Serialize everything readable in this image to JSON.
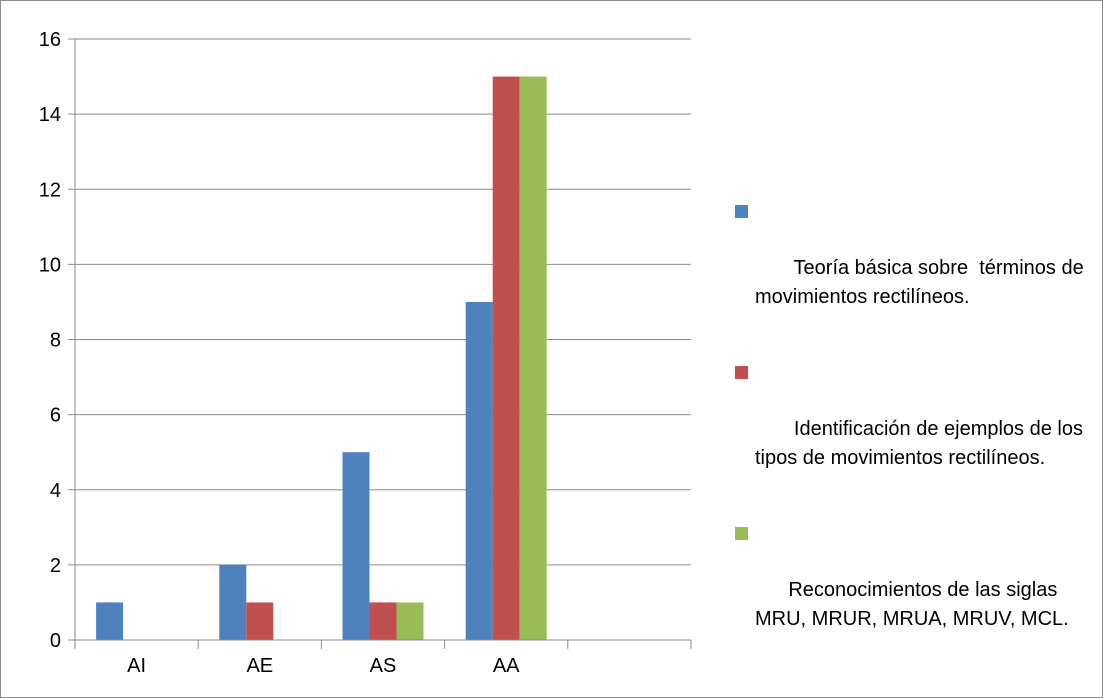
{
  "chart_data": {
    "type": "bar",
    "categories": [
      "AI",
      "AE",
      "AS",
      "AA",
      ""
    ],
    "series": [
      {
        "name": " Teoría básica sobre  términos de movimientos rectilíneos.",
        "values": [
          1,
          2,
          5,
          9,
          0
        ]
      },
      {
        "name": " Identificación de ejemplos de los tipos de movimientos rectilíneos.",
        "values": [
          0,
          1,
          1,
          15,
          0
        ]
      },
      {
        "name": "Reconocimientos de las siglas MRU, MRUR, MRUA, MRUV, MCL.",
        "values": [
          0,
          0,
          1,
          15,
          0
        ]
      }
    ],
    "y_ticks": [
      "0",
      "2",
      "4",
      "6",
      "8",
      "10",
      "12",
      "14",
      "16"
    ],
    "ylim": [
      0,
      16
    ],
    "grid": true,
    "legend_position": "right",
    "colors": [
      "#4f81bd",
      "#c0504d",
      "#9bbb59"
    ]
  }
}
